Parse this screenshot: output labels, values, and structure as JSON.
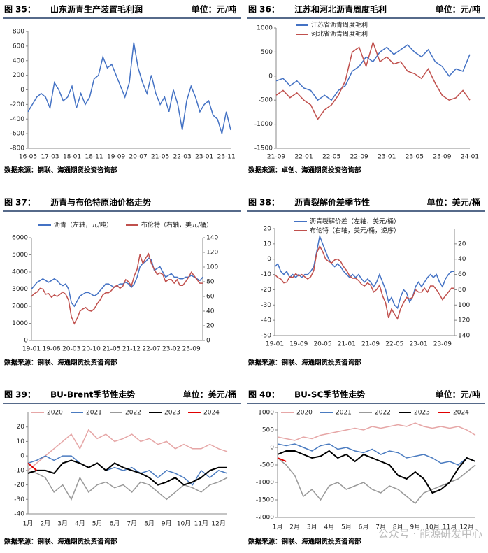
{
  "chart_data": [
    {
      "type": "line",
      "figure_label": "图 35：",
      "title": "山东沥青生产装置毛利润",
      "unit": "单位：元/吨",
      "source": "数据来源：钢联、海通期货投资咨询部",
      "x": [
        "16-05",
        "16-07",
        "16-09",
        "16-11",
        "17-01",
        "17-03",
        "17-05",
        "17-07",
        "17-09",
        "17-11",
        "18-01",
        "18-03",
        "18-05",
        "18-07",
        "18-09",
        "18-11",
        "19-01",
        "19-03",
        "19-05",
        "19-07",
        "19-09",
        "19-11",
        "20-01",
        "20-03",
        "20-05",
        "20-07",
        "20-09",
        "20-11",
        "21-01",
        "21-03",
        "21-05",
        "21-07",
        "21-09",
        "21-11",
        "22-01",
        "22-03",
        "22-05",
        "22-07",
        "22-09",
        "22-11",
        "23-01",
        "23-03",
        "23-05",
        "23-07",
        "23-09",
        "23-11",
        "24-01"
      ],
      "xticks": [
        "16-05",
        "17-03",
        "18-01",
        "18-11",
        "19-09",
        "20-07",
        "21-05",
        "22-03",
        "23-01",
        "23-11"
      ],
      "ylim": [
        -800,
        800
      ],
      "yticks": [
        -800,
        -600,
        -400,
        -200,
        0,
        200,
        400,
        600,
        800
      ],
      "series": [
        {
          "name": "山东",
          "color": "#4472c4",
          "values": [
            -300,
            -200,
            -100,
            -50,
            -100,
            -250,
            100,
            0,
            -150,
            -100,
            50,
            -250,
            -50,
            -200,
            -100,
            150,
            200,
            450,
            300,
            350,
            200,
            50,
            -100,
            100,
            650,
            300,
            100,
            -50,
            200,
            -50,
            -200,
            -100,
            -300,
            0,
            -200,
            -550,
            -150,
            50,
            -100,
            -300,
            -200,
            -150,
            -350,
            -400,
            -600,
            -300,
            -550
          ]
        }
      ],
      "legend": "none"
    },
    {
      "type": "line",
      "figure_label": "图 36：",
      "title": "江苏和河北沥青周度毛利",
      "unit": "单位：元/吨",
      "source": "数据来源：卓创、海通期货投资咨询部",
      "x": [
        "21-09",
        "21-10",
        "21-11",
        "21-12",
        "22-01",
        "22-02",
        "22-03",
        "22-04",
        "22-05",
        "22-06",
        "22-07",
        "22-08",
        "22-09",
        "22-10",
        "22-11",
        "22-12",
        "23-01",
        "23-02",
        "23-03",
        "23-04",
        "23-05",
        "23-06",
        "23-07",
        "23-08",
        "23-09",
        "23-10",
        "23-11",
        "23-12",
        "24-01"
      ],
      "xticks": [
        "21-09",
        "22-01",
        "22-05",
        "22-09",
        "23-01",
        "23-05",
        "23-09",
        "24-01"
      ],
      "ylim": [
        -1500,
        1000
      ],
      "yticks": [
        -1500,
        -1000,
        -500,
        0,
        500,
        1000
      ],
      "series": [
        {
          "name": "江苏省沥青周度毛利",
          "color": "#4472c4",
          "values": [
            -100,
            -50,
            -200,
            -100,
            -250,
            -300,
            -500,
            -400,
            -500,
            -300,
            -200,
            100,
            200,
            400,
            300,
            500,
            600,
            450,
            550,
            650,
            500,
            400,
            550,
            300,
            200,
            0,
            150,
            100,
            450
          ]
        },
        {
          "name": "河北省沥青周度毛利",
          "color": "#c0504d",
          "values": [
            -400,
            -300,
            -450,
            -350,
            -500,
            -600,
            -900,
            -700,
            -600,
            -400,
            -100,
            500,
            600,
            200,
            700,
            300,
            400,
            250,
            300,
            100,
            50,
            -50,
            150,
            -150,
            -400,
            -500,
            -450,
            -300,
            -500
          ]
        }
      ],
      "legend": "upper left"
    },
    {
      "type": "line",
      "figure_label": "图 37：",
      "title": "沥青与布伦特原油价格走势",
      "source": "数据来源：钢联、海通期货投资咨询部",
      "x": [
        "19-01",
        "19-02",
        "19-03",
        "19-04",
        "19-05",
        "19-06",
        "19-07",
        "19-08",
        "19-09",
        "19-10",
        "19-11",
        "19-12",
        "20-01",
        "20-02",
        "20-03",
        "20-04",
        "20-05",
        "20-06",
        "20-07",
        "20-08",
        "20-09",
        "20-10",
        "20-11",
        "20-12",
        "21-01",
        "21-02",
        "21-03",
        "21-04",
        "21-05",
        "21-06",
        "21-07",
        "21-08",
        "21-09",
        "21-10",
        "21-11",
        "21-12",
        "22-01",
        "22-02",
        "22-03",
        "22-04",
        "22-05",
        "22-06",
        "22-07",
        "22-08",
        "22-09",
        "22-10",
        "22-11",
        "22-12",
        "23-01",
        "23-02",
        "23-03",
        "23-04",
        "23-05",
        "23-06",
        "23-07",
        "23-08",
        "23-09",
        "23-10",
        "23-11",
        "23-12",
        "24-01"
      ],
      "xticks": [
        "19-01",
        "19-08",
        "20-03",
        "20-10",
        "21-05",
        "21-12",
        "22-07",
        "23-02",
        "23-09"
      ],
      "ylim": [
        0,
        6000
      ],
      "yticks": [
        0,
        1000,
        2000,
        3000,
        4000,
        5000,
        6000
      ],
      "y2lim": [
        0,
        140
      ],
      "y2ticks": [
        0,
        20,
        40,
        60,
        80,
        100,
        120,
        140
      ],
      "series": [
        {
          "name": "沥青（左轴，元/吨）",
          "color": "#4472c4",
          "values": [
            3000,
            3200,
            3400,
            3500,
            3600,
            3500,
            3400,
            3500,
            3600,
            3500,
            3300,
            3200,
            3300,
            3000,
            2200,
            2000,
            2300,
            2600,
            2700,
            2800,
            2800,
            2700,
            2600,
            2700,
            2900,
            3100,
            3300,
            3300,
            3200,
            3100,
            3200,
            3300,
            3300,
            3400,
            3300,
            3100,
            3300,
            3700,
            4300,
            4500,
            4600,
            4800,
            4700,
            4100,
            4200,
            4300,
            4000,
            3700,
            3800,
            3900,
            3700,
            3700,
            3600,
            3600,
            3700,
            3700,
            3800,
            3700,
            3600,
            3500,
            3700
          ]
        },
        {
          "name": "布伦特（右轴，美元/桶）",
          "color": "#c0504d",
          "axis": "y2",
          "values": [
            60,
            64,
            66,
            71,
            70,
            63,
            64,
            59,
            62,
            60,
            63,
            66,
            63,
            55,
            32,
            23,
            30,
            40,
            43,
            45,
            41,
            40,
            43,
            50,
            55,
            62,
            65,
            65,
            68,
            73,
            75,
            71,
            74,
            83,
            80,
            74,
            88,
            97,
            117,
            105,
            112,
            118,
            105,
            97,
            90,
            92,
            90,
            80,
            83,
            83,
            78,
            83,
            75,
            75,
            80,
            86,
            93,
            88,
            83,
            78,
            78
          ]
        }
      ],
      "legend": "upper center"
    },
    {
      "type": "line",
      "figure_label": "图 38：",
      "title": "沥青裂解价差季节性",
      "unit": "单位：美元/桶",
      "source": "数据来源：钢联、海通期货投资咨询部",
      "x": [
        "19-01",
        "19-02",
        "19-03",
        "19-04",
        "19-05",
        "19-06",
        "19-07",
        "19-08",
        "19-09",
        "19-10",
        "19-11",
        "19-12",
        "20-01",
        "20-02",
        "20-03",
        "20-04",
        "20-05",
        "20-06",
        "20-07",
        "20-08",
        "20-09",
        "20-10",
        "20-11",
        "20-12",
        "21-01",
        "21-02",
        "21-03",
        "21-04",
        "21-05",
        "21-06",
        "21-07",
        "21-08",
        "21-09",
        "21-10",
        "21-11",
        "21-12",
        "22-01",
        "22-02",
        "22-03",
        "22-04",
        "22-05",
        "22-06",
        "22-07",
        "22-08",
        "22-09",
        "22-10",
        "22-11",
        "22-12",
        "23-01",
        "23-02",
        "23-03",
        "23-04",
        "23-05",
        "23-06",
        "23-07",
        "23-08",
        "23-09",
        "23-10",
        "23-11",
        "23-12",
        "24-01"
      ],
      "xticks": [
        "19-01",
        "19-09",
        "20-05",
        "21-01",
        "21-09",
        "22-05",
        "23-01",
        "23-09"
      ],
      "ylim": [
        -50,
        20
      ],
      "yticks": [
        -50,
        -40,
        -30,
        -20,
        -10,
        0,
        10,
        20
      ],
      "y2lim": [
        140,
        0
      ],
      "y2ticks": [
        20,
        40,
        60,
        80,
        100,
        120,
        140
      ],
      "series": [
        {
          "name": "沥青裂解价差（左轴，美元/桶）",
          "color": "#4472c4",
          "values": [
            -5,
            -3,
            -8,
            -10,
            -8,
            -12,
            -10,
            -12,
            -10,
            -12,
            -10,
            -10,
            -8,
            -5,
            5,
            15,
            10,
            5,
            0,
            -3,
            -5,
            -3,
            -5,
            -8,
            -10,
            -12,
            -10,
            -12,
            -10,
            -13,
            -15,
            -13,
            -15,
            -18,
            -15,
            -10,
            -15,
            -20,
            -28,
            -25,
            -30,
            -32,
            -25,
            -20,
            -22,
            -28,
            -25,
            -18,
            -15,
            -18,
            -15,
            -12,
            -10,
            -12,
            -10,
            -15,
            -18,
            -13,
            -10,
            -8,
            -8
          ]
        },
        {
          "name": "布伦特（右轴，美元/桶，逆序）",
          "color": "#c0504d",
          "axis": "y2",
          "values": [
            60,
            64,
            66,
            71,
            70,
            63,
            64,
            59,
            62,
            60,
            63,
            66,
            63,
            55,
            32,
            23,
            30,
            40,
            43,
            45,
            41,
            40,
            43,
            50,
            55,
            62,
            65,
            65,
            68,
            73,
            75,
            71,
            74,
            83,
            80,
            74,
            88,
            97,
            117,
            105,
            112,
            118,
            105,
            97,
            90,
            92,
            90,
            80,
            83,
            83,
            78,
            83,
            75,
            75,
            80,
            86,
            93,
            88,
            83,
            78,
            78
          ]
        }
      ],
      "legend": "upper left"
    },
    {
      "type": "line",
      "figure_label": "图 39：",
      "title": "BU-Brent季节性走势",
      "unit": "单位：美元/桶",
      "source": "数据来源：钢联、海通期货投资咨询部",
      "categories": [
        "1月",
        null,
        "2月",
        null,
        "3月",
        null,
        "4月",
        null,
        "5月",
        null,
        "6月",
        null,
        "7月",
        null,
        "8月",
        null,
        "9月",
        null,
        "10月",
        null,
        "11月",
        null,
        "12月",
        null
      ],
      "ylim": [
        -40,
        30
      ],
      "yticks": [
        -40,
        -30,
        -20,
        -10,
        0,
        10,
        20
      ],
      "series": [
        {
          "name": "2020",
          "color": "#e6a6a6",
          "values": [
            -10,
            -5,
            0,
            5,
            10,
            15,
            5,
            18,
            12,
            15,
            10,
            12,
            15,
            10,
            12,
            8,
            10,
            5,
            8,
            5,
            5,
            8,
            5,
            3
          ]
        },
        {
          "name": "2021",
          "color": "#4a7bc0",
          "values": [
            -5,
            -3,
            0,
            -3,
            0,
            0,
            -5,
            -8,
            -5,
            -10,
            -8,
            -10,
            -8,
            -12,
            -10,
            -15,
            -10,
            -12,
            -15,
            -20,
            -10,
            -15,
            -10,
            -12
          ]
        },
        {
          "name": "2022",
          "color": "#999999",
          "values": [
            -10,
            -12,
            -15,
            -25,
            -20,
            -30,
            -15,
            -25,
            -20,
            -18,
            -22,
            -20,
            -25,
            -18,
            -20,
            -25,
            -30,
            -25,
            -20,
            -22,
            -25,
            -20,
            -18,
            -15
          ]
        },
        {
          "name": "2023",
          "color": "#000000",
          "values": [
            -12,
            -10,
            -10,
            -12,
            -5,
            -3,
            -5,
            -8,
            -5,
            -10,
            -5,
            -8,
            -10,
            -12,
            -15,
            -20,
            -18,
            -15,
            -20,
            -18,
            -15,
            -10,
            -8,
            -8
          ]
        },
        {
          "name": "2024",
          "color": "#e00000",
          "values": [
            -5,
            -10,
            null,
            null,
            null,
            null,
            null,
            null,
            null,
            null,
            null,
            null,
            null,
            null,
            null,
            null,
            null,
            null,
            null,
            null,
            null,
            null,
            null,
            null
          ]
        }
      ],
      "legend": "upper center"
    },
    {
      "type": "line",
      "figure_label": "图 40：",
      "title": "BU-SC季节性走势",
      "unit": "单位：元/吨",
      "source": "数据来源：钢联、海通期货投资咨询部",
      "categories": [
        "1月",
        null,
        "2月",
        null,
        "3月",
        null,
        "4月",
        null,
        "5月",
        null,
        "6月",
        null,
        "7月",
        null,
        "8月",
        null,
        "9月",
        null,
        "10月",
        null,
        "11月",
        null,
        "12月",
        null
      ],
      "ylim": [
        -2000,
        1000
      ],
      "yticks": [
        -2000,
        -1500,
        -1000,
        -500,
        0,
        500,
        1000
      ],
      "series": [
        {
          "name": "2020",
          "color": "#e6a6a6",
          "values": [
            300,
            250,
            200,
            300,
            250,
            350,
            400,
            450,
            500,
            550,
            500,
            600,
            550,
            600,
            650,
            600,
            700,
            600,
            550,
            600,
            550,
            600,
            500,
            350
          ]
        },
        {
          "name": "2021",
          "color": "#4a7bc0",
          "values": [
            100,
            50,
            100,
            0,
            -100,
            50,
            100,
            -50,
            0,
            -100,
            -150,
            -50,
            -200,
            -100,
            -150,
            -300,
            -250,
            -200,
            -300,
            -450,
            -400,
            -500,
            -300,
            -400
          ]
        },
        {
          "name": "2022",
          "color": "#999999",
          "values": [
            -300,
            -500,
            -800,
            -1400,
            -1200,
            -1500,
            -1100,
            -1000,
            -1200,
            -1100,
            -1000,
            -1200,
            -1300,
            -1100,
            -1200,
            -1400,
            -1600,
            -1300,
            -1200,
            -1100,
            -1000,
            -900,
            -700,
            -500
          ]
        },
        {
          "name": "2023",
          "color": "#000000",
          "values": [
            -200,
            -100,
            -100,
            -200,
            -300,
            -250,
            -100,
            -300,
            -200,
            -400,
            -200,
            -300,
            -400,
            -500,
            -800,
            -900,
            -700,
            -900,
            -1300,
            -1200,
            -1000,
            -600,
            -300,
            -400
          ]
        },
        {
          "name": "2024",
          "color": "#e00000",
          "values": [
            -300,
            -400,
            null,
            null,
            null,
            null,
            null,
            null,
            null,
            null,
            null,
            null,
            null,
            null,
            null,
            null,
            null,
            null,
            null,
            null,
            null,
            null,
            null,
            null
          ]
        }
      ],
      "legend": "upper center"
    }
  ],
  "watermark": "公众号 · 能源研发中心"
}
